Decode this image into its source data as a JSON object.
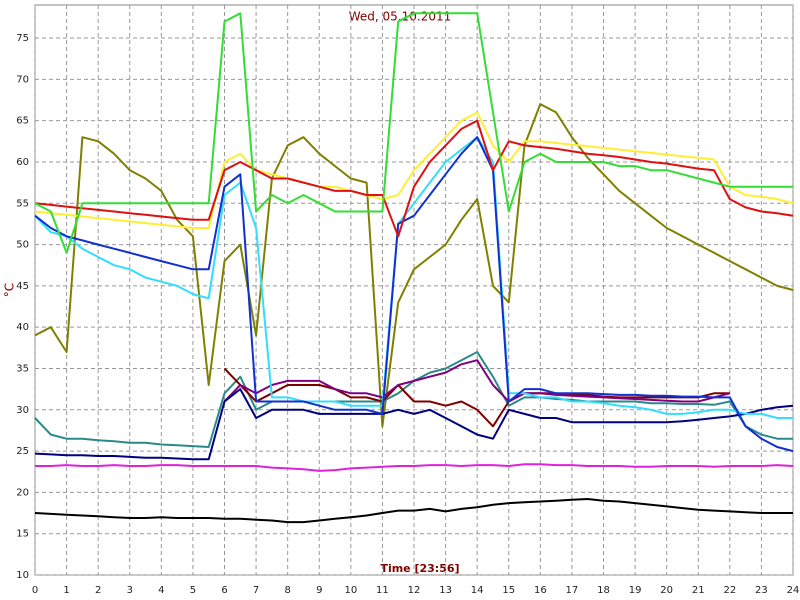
{
  "chart_data": {
    "type": "line",
    "title": "Wed, 05.10.2011",
    "x_label": "Time [23:56]",
    "y_label": "°C",
    "xlim": [
      0,
      24
    ],
    "ylim": [
      10,
      79
    ],
    "xticks": [
      0,
      1,
      2,
      3,
      4,
      5,
      6,
      7,
      8,
      9,
      10,
      11,
      12,
      13,
      14,
      15,
      16,
      17,
      18,
      19,
      20,
      21,
      22,
      23,
      24
    ],
    "yticks": [
      10,
      15,
      20,
      25,
      30,
      35,
      40,
      45,
      50,
      55,
      60,
      65,
      70,
      75
    ],
    "grid": true,
    "x": [
      0,
      0.5,
      1,
      1.5,
      2,
      2.5,
      3,
      3.5,
      4,
      4.5,
      5,
      5.5,
      6,
      6.5,
      7,
      7.5,
      8,
      8.5,
      9,
      9.5,
      10,
      10.5,
      11,
      11.5,
      12,
      12.5,
      13,
      13.5,
      14,
      14.5,
      15,
      15.5,
      16,
      16.5,
      17,
      17.5,
      18,
      18.5,
      19,
      19.5,
      20,
      20.5,
      21,
      21.5,
      22,
      22.5,
      23,
      23.5,
      24
    ],
    "series": [
      {
        "color": "#808000",
        "values": [
          39,
          40,
          37,
          63,
          62.5,
          61,
          59,
          58,
          56.5,
          53,
          51,
          33,
          48,
          50,
          39,
          58,
          62,
          63,
          61,
          59.5,
          58,
          57.5,
          28,
          43,
          47,
          48.5,
          50,
          53,
          55.5,
          45,
          43,
          62,
          67,
          66,
          63,
          60.5,
          58.5,
          56.5,
          55,
          53.5,
          52,
          51,
          50,
          49,
          48,
          47,
          46,
          45,
          44.5
        ]
      },
      {
        "color": "#2a8a8a",
        "values": [
          29,
          27,
          26.5,
          26.5,
          26.3,
          26.2,
          26,
          26,
          25.8,
          25.7,
          25.6,
          25.5,
          32,
          34,
          30,
          31,
          31,
          31,
          31,
          31,
          31,
          31,
          31,
          32,
          33.5,
          34.5,
          35,
          36,
          37,
          34,
          30.5,
          31.5,
          31.5,
          31.3,
          31.2,
          31,
          31,
          31,
          31,
          30.8,
          30.8,
          30.7,
          30.7,
          30.6,
          31,
          28,
          27,
          26.5,
          26.5
        ]
      },
      {
        "color": "#800000",
        "values": [
          null,
          null,
          null,
          null,
          null,
          null,
          null,
          null,
          null,
          null,
          null,
          null,
          35,
          33,
          31,
          32,
          33,
          33,
          33,
          32.5,
          31.5,
          31.5,
          31,
          33,
          31,
          31,
          30.5,
          31,
          30,
          28,
          31,
          32,
          32,
          32,
          31.8,
          31.8,
          31.6,
          31.5,
          31.5,
          31.5,
          31.5,
          31.5,
          31.5,
          32,
          32,
          null,
          null,
          null,
          null
        ]
      },
      {
        "color": "#800080",
        "values": [
          null,
          null,
          null,
          null,
          null,
          null,
          null,
          null,
          null,
          null,
          null,
          null,
          31,
          33,
          32,
          33,
          33.5,
          33.5,
          33.5,
          32.5,
          32,
          32,
          31.5,
          33,
          33.5,
          34,
          34.5,
          35.5,
          36,
          33,
          31,
          32,
          32,
          31.8,
          31.7,
          31.6,
          31.5,
          31.4,
          31.3,
          31.2,
          31.1,
          31,
          31,
          31.5,
          32,
          null,
          null,
          null,
          null
        ]
      },
      {
        "color": "#000080",
        "values": [
          24.7,
          24.6,
          24.5,
          24.5,
          24.4,
          24.4,
          24.3,
          24.2,
          24.2,
          24.1,
          24,
          24,
          31,
          32.5,
          29,
          30,
          30,
          30,
          29.5,
          29.5,
          29.5,
          29.5,
          29.5,
          30,
          29.5,
          30,
          29,
          28,
          27,
          26.5,
          30,
          29.5,
          29,
          29,
          28.5,
          28.5,
          28.5,
          28.5,
          28.5,
          28.5,
          28.5,
          28.6,
          28.8,
          29,
          29.2,
          29.5,
          30,
          30.3,
          30.5
        ]
      },
      {
        "color": "#33ddff",
        "values": [
          53.5,
          51.5,
          51,
          49.5,
          48.5,
          47.5,
          47,
          46,
          45.5,
          45,
          44,
          43.5,
          56,
          57.5,
          52,
          31.5,
          31.5,
          31,
          31,
          31,
          30.5,
          30.5,
          30.5,
          52.5,
          55,
          57.5,
          60,
          61.5,
          63,
          60,
          32,
          32,
          31.5,
          31.5,
          31,
          31,
          30.8,
          30.5,
          30.3,
          30,
          29.5,
          29.5,
          29.7,
          30,
          30,
          29.5,
          29.5,
          29,
          29
        ]
      },
      {
        "color": "#1030d0",
        "values": [
          53.5,
          52,
          51,
          50.5,
          50,
          49.5,
          49,
          48.5,
          48,
          47.5,
          47,
          47,
          57,
          58.5,
          31,
          31,
          31,
          31,
          30.5,
          30,
          30,
          30,
          29.5,
          52.5,
          53.5,
          56,
          58.5,
          61,
          63,
          59,
          31,
          32.5,
          32.5,
          32,
          32,
          32,
          31.9,
          31.8,
          31.8,
          31.7,
          31.7,
          31.6,
          31.6,
          31.5,
          31.5,
          28,
          26.5,
          25.5,
          25
        ]
      },
      {
        "color": "#ffee33",
        "values": [
          54,
          53.8,
          53.6,
          53.4,
          53.2,
          53,
          52.8,
          52.6,
          52.4,
          52.2,
          52,
          52,
          60,
          61,
          59,
          58.5,
          58,
          57.5,
          57,
          57,
          56.5,
          56,
          55.5,
          56,
          59,
          61,
          63,
          65,
          66,
          62,
          60,
          62.5,
          62.5,
          62.3,
          62.1,
          61.9,
          61.7,
          61.5,
          61.3,
          61.1,
          60.9,
          60.7,
          60.5,
          60.3,
          57,
          56,
          55.8,
          55.5,
          55
        ]
      },
      {
        "color": "#dd1111",
        "values": [
          55,
          54.8,
          54.6,
          54.4,
          54.2,
          54,
          53.8,
          53.6,
          53.4,
          53.2,
          53,
          53,
          59,
          60,
          59,
          58,
          58,
          57.5,
          57,
          56.5,
          56.5,
          56,
          56,
          51,
          57,
          60,
          62,
          64,
          65,
          59,
          62.5,
          62,
          61.8,
          61.6,
          61.3,
          61,
          60.8,
          60.6,
          60.3,
          60,
          59.8,
          59.5,
          59.2,
          59,
          55.5,
          54.5,
          54,
          53.8,
          53.5
        ]
      },
      {
        "color": "#33dd33",
        "values": [
          55,
          54,
          49,
          55,
          55,
          55,
          55,
          55,
          55,
          55,
          55,
          55,
          77,
          78,
          54,
          56,
          55,
          56,
          55,
          54,
          54,
          54,
          54,
          77,
          78,
          78,
          78,
          78,
          78,
          66,
          54,
          60,
          61,
          60,
          60,
          60,
          60,
          59.5,
          59.5,
          59,
          59,
          58.5,
          58,
          57.5,
          57,
          57,
          57,
          57,
          57
        ]
      },
      {
        "color": "#dd22dd",
        "values": [
          23.2,
          23.2,
          23.3,
          23.2,
          23.2,
          23.3,
          23.2,
          23.2,
          23.3,
          23.3,
          23.2,
          23.2,
          23.2,
          23.2,
          23.2,
          23,
          22.9,
          22.8,
          22.6,
          22.7,
          22.9,
          23,
          23.1,
          23.2,
          23.2,
          23.3,
          23.3,
          23.2,
          23.3,
          23.3,
          23.2,
          23.4,
          23.4,
          23.3,
          23.3,
          23.2,
          23.2,
          23.2,
          23.1,
          23.1,
          23.2,
          23.2,
          23.2,
          23.1,
          23.2,
          23.2,
          23.2,
          23.3,
          23.2
        ]
      },
      {
        "color": "#000000",
        "values": [
          17.5,
          17.4,
          17.3,
          17.2,
          17.1,
          17,
          16.9,
          16.9,
          17,
          16.9,
          16.9,
          16.9,
          16.8,
          16.8,
          16.7,
          16.6,
          16.4,
          16.4,
          16.6,
          16.8,
          17,
          17.2,
          17.5,
          17.8,
          17.8,
          18,
          17.7,
          18,
          18.2,
          18.5,
          18.7,
          18.8,
          18.9,
          19,
          19.1,
          19.2,
          19,
          18.9,
          18.7,
          18.5,
          18.3,
          18.1,
          17.9,
          17.8,
          17.7,
          17.6,
          17.5,
          17.5,
          17.5
        ]
      }
    ]
  }
}
